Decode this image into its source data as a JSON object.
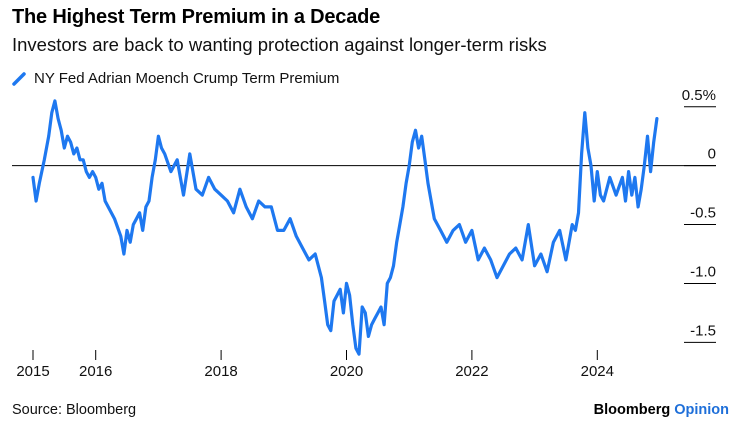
{
  "header": {
    "title": "The Highest Term Premium in a Decade",
    "subtitle": "Investors are back to wanting protection against longer-term risks"
  },
  "footer": {
    "source": "Source: Bloomberg",
    "brand_main": "Bloomberg",
    "brand_accent": "Opinion"
  },
  "colors": {
    "series": "#1e78f0",
    "zero_line": "#000000",
    "text": "#111111"
  },
  "chart_data": {
    "type": "line",
    "title": "The Highest Term Premium in a Decade",
    "subtitle": "Investors are back to wanting protection against longer-term risks",
    "xlabel": "",
    "ylabel": "",
    "xlim": [
      2015.0,
      2025.0
    ],
    "ylim": [
      -1.65,
      0.6
    ],
    "x_ticks": [
      {
        "value": 2015,
        "label": "2015"
      },
      {
        "value": 2016,
        "label": "2016"
      },
      {
        "value": 2018,
        "label": "2018"
      },
      {
        "value": 2020,
        "label": "2020"
      },
      {
        "value": 2022,
        "label": "2022"
      },
      {
        "value": 2024,
        "label": "2024"
      }
    ],
    "y_ticks": [
      {
        "value": 0.5,
        "label": "0.5%"
      },
      {
        "value": 0,
        "label": "0"
      },
      {
        "value": -0.5,
        "label": "-0.5"
      },
      {
        "value": -1.0,
        "label": "-1.0"
      },
      {
        "value": -1.5,
        "label": "-1.5"
      }
    ],
    "legend_position": "top-left",
    "grid": false,
    "series": [
      {
        "name": "NY Fed Adrian Moench Crump Term Premium",
        "x": [
          2015.0,
          2015.05,
          2015.1,
          2015.18,
          2015.25,
          2015.3,
          2015.35,
          2015.4,
          2015.45,
          2015.5,
          2015.55,
          2015.6,
          2015.65,
          2015.7,
          2015.75,
          2015.8,
          2015.85,
          2015.9,
          2015.95,
          2016.0,
          2016.05,
          2016.1,
          2016.15,
          2016.2,
          2016.3,
          2016.4,
          2016.45,
          2016.5,
          2016.55,
          2016.6,
          2016.65,
          2016.7,
          2016.75,
          2016.8,
          2016.85,
          2016.9,
          2016.95,
          2017.0,
          2017.05,
          2017.1,
          2017.2,
          2017.3,
          2017.4,
          2017.5,
          2017.6,
          2017.7,
          2017.8,
          2017.9,
          2018.0,
          2018.1,
          2018.2,
          2018.3,
          2018.4,
          2018.5,
          2018.6,
          2018.7,
          2018.8,
          2018.9,
          2019.0,
          2019.1,
          2019.2,
          2019.3,
          2019.4,
          2019.5,
          2019.6,
          2019.65,
          2019.7,
          2019.75,
          2019.8,
          2019.85,
          2019.9,
          2019.95,
          2020.0,
          2020.05,
          2020.1,
          2020.15,
          2020.2,
          2020.25,
          2020.3,
          2020.35,
          2020.4,
          2020.45,
          2020.5,
          2020.55,
          2020.6,
          2020.65,
          2020.7,
          2020.75,
          2020.8,
          2020.85,
          2020.9,
          2020.95,
          2021.0,
          2021.05,
          2021.1,
          2021.15,
          2021.2,
          2021.25,
          2021.3,
          2021.4,
          2021.5,
          2021.6,
          2021.7,
          2021.8,
          2021.9,
          2022.0,
          2022.1,
          2022.2,
          2022.3,
          2022.4,
          2022.5,
          2022.6,
          2022.7,
          2022.8,
          2022.9,
          2023.0,
          2023.1,
          2023.2,
          2023.3,
          2023.4,
          2023.5,
          2023.6,
          2023.65,
          2023.7,
          2023.75,
          2023.8,
          2023.85,
          2023.9,
          2023.95,
          2024.0,
          2024.05,
          2024.1,
          2024.2,
          2024.3,
          2024.4,
          2024.45,
          2024.5,
          2024.55,
          2024.6,
          2024.65,
          2024.7,
          2024.75,
          2024.8,
          2024.85,
          2024.9,
          2024.95
        ],
        "values": [
          -0.1,
          -0.3,
          -0.15,
          0.05,
          0.25,
          0.45,
          0.55,
          0.4,
          0.3,
          0.15,
          0.25,
          0.2,
          0.1,
          0.15,
          0.05,
          0.05,
          -0.05,
          -0.1,
          -0.05,
          -0.1,
          -0.2,
          -0.15,
          -0.3,
          -0.35,
          -0.45,
          -0.6,
          -0.75,
          -0.55,
          -0.65,
          -0.5,
          -0.45,
          -0.4,
          -0.55,
          -0.35,
          -0.3,
          -0.1,
          0.05,
          0.25,
          0.15,
          0.1,
          -0.05,
          0.05,
          -0.25,
          0.1,
          -0.2,
          -0.25,
          -0.1,
          -0.2,
          -0.25,
          -0.3,
          -0.4,
          -0.2,
          -0.35,
          -0.45,
          -0.3,
          -0.35,
          -0.35,
          -0.55,
          -0.55,
          -0.45,
          -0.6,
          -0.7,
          -0.8,
          -0.75,
          -0.95,
          -1.15,
          -1.35,
          -1.4,
          -1.15,
          -1.1,
          -1.05,
          -1.25,
          -1.0,
          -1.1,
          -1.35,
          -1.55,
          -1.6,
          -1.2,
          -1.25,
          -1.45,
          -1.35,
          -1.3,
          -1.25,
          -1.2,
          -1.35,
          -1.0,
          -0.95,
          -0.85,
          -0.65,
          -0.5,
          -0.35,
          -0.15,
          0.0,
          0.2,
          0.3,
          0.15,
          0.25,
          0.05,
          -0.15,
          -0.45,
          -0.55,
          -0.65,
          -0.55,
          -0.5,
          -0.65,
          -0.55,
          -0.8,
          -0.7,
          -0.8,
          -0.95,
          -0.85,
          -0.75,
          -0.7,
          -0.8,
          -0.5,
          -0.85,
          -0.75,
          -0.9,
          -0.65,
          -0.55,
          -0.8,
          -0.5,
          -0.55,
          -0.4,
          0.1,
          0.45,
          0.15,
          0.0,
          -0.3,
          -0.05,
          -0.25,
          -0.3,
          -0.1,
          -0.25,
          -0.1,
          -0.3,
          -0.05,
          -0.25,
          -0.1,
          -0.35,
          -0.2,
          0.0,
          0.25,
          -0.05,
          0.2,
          0.4
        ]
      }
    ]
  }
}
